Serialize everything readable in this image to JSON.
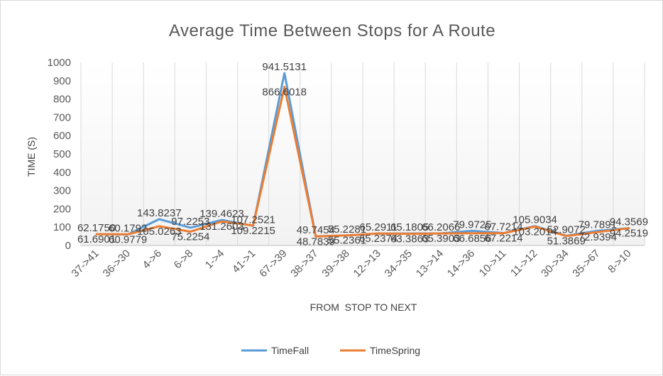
{
  "chart_data": {
    "type": "line",
    "title": "Average Time Between Stops for A Route",
    "xlabel": "FROM  STOP TO NEXT",
    "ylabel": "TIME (S)",
    "ylim": [
      0,
      1000
    ],
    "yticks": [
      0,
      100,
      200,
      300,
      400,
      500,
      600,
      700,
      800,
      900,
      1000
    ],
    "grid": "vertical category separators only",
    "legend": "bottom",
    "categories": [
      "37->41",
      "36->30",
      "4->6",
      "6->8",
      "1->4",
      "41->1",
      "67->39",
      "38->37",
      "39->38",
      "12->13",
      "34->35",
      "13->14",
      "14->36",
      "10->11",
      "11->12",
      "30->34",
      "35->67",
      "8->10"
    ],
    "series": [
      {
        "name": "TimeFall",
        "color": "#5b9bd5",
        "values": [
          62.175,
          60.1792,
          143.8237,
          97.2253,
          139.4623,
          107.2521,
          941.5131,
          49.7454,
          55.2281,
          65.2911,
          65.1805,
          66.2066,
          79.9725,
          67.7214,
          105.9034,
          52.9072,
          79.7891,
          94.3569
        ],
        "labels": [
          "62.1750",
          "60.1792",
          "143.8237",
          "97.2253",
          "139.4623",
          "107.2521",
          "941.5131",
          "49.7454",
          "55.2281",
          "65.2911",
          "65.1805",
          "66.2066",
          "79.9725",
          "67.7214",
          "105.9034",
          "52.9072",
          "79.7891",
          "94.3569"
        ]
      },
      {
        "name": "TimeSpring",
        "color": "#ed7d31",
        "values": [
          61.6901,
          60.9779,
          105.0263,
          75.2254,
          131.2603,
          109.2215,
          866.6018,
          48.7839,
          55.2361,
          65.2374,
          63.3863,
          65.3903,
          66.6856,
          67.2214,
          103.2014,
          51.3869,
          72.9394,
          94.2519
        ],
        "labels": [
          "61.6901",
          "60.9779",
          "105.0263",
          "75.2254",
          "131.2603",
          "109.2215",
          "866.6018",
          "48.7839",
          "55.2361",
          "65.2374",
          "63.3863",
          "65.3903",
          "66.6856",
          "67.2214",
          "103.2014",
          "51.3869",
          "72.9394",
          "94.2519"
        ]
      }
    ]
  }
}
